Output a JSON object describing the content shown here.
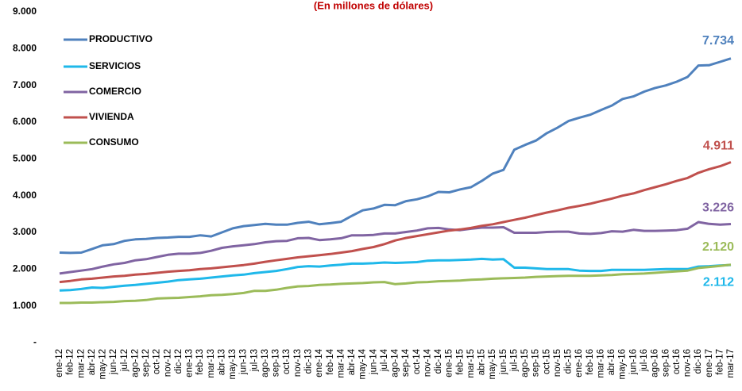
{
  "chart_data": {
    "type": "line",
    "subtitle": "(En millones de dólares)",
    "categories": [
      "ene-12",
      "feb-12",
      "mar-12",
      "abr-12",
      "may-12",
      "jun-12",
      "jul-12",
      "ago-12",
      "sep-12",
      "oct-12",
      "nov-12",
      "dic-12",
      "ene-13",
      "feb-13",
      "mar-13",
      "abr-13",
      "may-13",
      "jun-13",
      "jul-13",
      "ago-13",
      "sep-13",
      "oct-13",
      "nov-13",
      "dic-13",
      "ene-14",
      "feb-14",
      "mar-14",
      "abr-14",
      "may-14",
      "jun-14",
      "jul-14",
      "ago-14",
      "sep-14",
      "oct-14",
      "nov-14",
      "dic-14",
      "ene-15",
      "feb-15",
      "mar-15",
      "abr-15",
      "may-15",
      "jun-15",
      "jul-15",
      "ago-15",
      "sep-15",
      "oct-15",
      "nov-15",
      "dic-15",
      "ene-16",
      "feb-16",
      "mar-16",
      "abr-16",
      "may-16",
      "jun-16",
      "jul-16",
      "ago-16",
      "sep-16",
      "oct-16",
      "nov-16",
      "dic-16",
      "ene-17",
      "feb-17",
      "mar-17"
    ],
    "series": [
      {
        "name": "PRODUCTIVO",
        "color": "#4f81bd",
        "values": [
          2450,
          2440,
          2450,
          2550,
          2650,
          2680,
          2770,
          2810,
          2820,
          2850,
          2860,
          2880,
          2880,
          2920,
          2890,
          3000,
          3110,
          3170,
          3200,
          3230,
          3210,
          3210,
          3260,
          3290,
          3220,
          3250,
          3290,
          3450,
          3600,
          3650,
          3750,
          3740,
          3850,
          3900,
          3980,
          4100,
          4090,
          4170,
          4230,
          4400,
          4600,
          4700,
          5250,
          5380,
          5500,
          5700,
          5850,
          6030,
          6120,
          6200,
          6330,
          6450,
          6630,
          6700,
          6830,
          6930,
          7000,
          7100,
          7230,
          7540,
          7550,
          7640,
          7734
        ],
        "value_labels": [
          null,
          null,
          null,
          null,
          null,
          null,
          null,
          null,
          null,
          null,
          null,
          null,
          null,
          null,
          null,
          null,
          null,
          null,
          null,
          null,
          null,
          null,
          null,
          null,
          null,
          null,
          null,
          null,
          null,
          null,
          null,
          null,
          null,
          null,
          null,
          null,
          null,
          null,
          null,
          null,
          null,
          null,
          null,
          null,
          null,
          null,
          null,
          null,
          null,
          null,
          null,
          null,
          null,
          null,
          null,
          null,
          null,
          null,
          null,
          null,
          null,
          null,
          "7.734"
        ]
      },
      {
        "name": "SERVICIOS",
        "color": "#1fb8ea",
        "values": [
          1420,
          1430,
          1460,
          1500,
          1490,
          1520,
          1550,
          1570,
          1600,
          1630,
          1660,
          1700,
          1720,
          1740,
          1770,
          1800,
          1830,
          1850,
          1890,
          1920,
          1950,
          2000,
          2060,
          2080,
          2070,
          2100,
          2120,
          2150,
          2150,
          2160,
          2180,
          2170,
          2180,
          2190,
          2230,
          2240,
          2240,
          2250,
          2260,
          2280,
          2260,
          2270,
          2040,
          2040,
          2020,
          2000,
          2000,
          2000,
          1960,
          1950,
          1950,
          1980,
          1980,
          1980,
          1980,
          1990,
          2000,
          2000,
          2000,
          2070,
          2080,
          2100,
          2112
        ],
        "value_labels": [
          null,
          null,
          null,
          null,
          null,
          null,
          null,
          null,
          null,
          null,
          null,
          null,
          null,
          null,
          null,
          null,
          null,
          null,
          null,
          null,
          null,
          null,
          null,
          null,
          null,
          null,
          null,
          null,
          null,
          null,
          null,
          null,
          null,
          null,
          null,
          null,
          null,
          null,
          null,
          null,
          null,
          null,
          null,
          null,
          null,
          null,
          null,
          null,
          null,
          null,
          null,
          null,
          null,
          null,
          null,
          null,
          null,
          null,
          null,
          null,
          null,
          null,
          "2.112"
        ]
      },
      {
        "name": "COMERCIO",
        "color": "#8064a2",
        "values": [
          1880,
          1920,
          1960,
          2000,
          2070,
          2130,
          2170,
          2240,
          2270,
          2330,
          2390,
          2420,
          2420,
          2440,
          2500,
          2580,
          2620,
          2650,
          2680,
          2730,
          2760,
          2770,
          2840,
          2850,
          2790,
          2810,
          2840,
          2920,
          2920,
          2930,
          2970,
          2970,
          3010,
          3050,
          3110,
          3120,
          3080,
          3060,
          3100,
          3130,
          3130,
          3140,
          2990,
          2990,
          2990,
          3010,
          3020,
          3020,
          2970,
          2960,
          2980,
          3030,
          3020,
          3070,
          3040,
          3040,
          3050,
          3060,
          3100,
          3280,
          3230,
          3210,
          3226
        ],
        "value_labels": [
          null,
          null,
          null,
          null,
          null,
          null,
          null,
          null,
          null,
          null,
          null,
          null,
          null,
          null,
          null,
          null,
          null,
          null,
          null,
          null,
          null,
          null,
          null,
          null,
          null,
          null,
          null,
          null,
          null,
          null,
          null,
          null,
          null,
          null,
          null,
          null,
          null,
          null,
          null,
          null,
          null,
          null,
          null,
          null,
          null,
          null,
          null,
          null,
          null,
          null,
          null,
          null,
          null,
          null,
          null,
          null,
          null,
          null,
          null,
          null,
          null,
          null,
          "3.226"
        ]
      },
      {
        "name": "VIVIENDA",
        "color": "#c0504d",
        "values": [
          1650,
          1680,
          1720,
          1740,
          1770,
          1800,
          1820,
          1850,
          1870,
          1900,
          1930,
          1950,
          1970,
          2000,
          2020,
          2050,
          2080,
          2110,
          2150,
          2200,
          2240,
          2280,
          2320,
          2350,
          2380,
          2410,
          2450,
          2490,
          2550,
          2600,
          2680,
          2780,
          2850,
          2900,
          2950,
          3000,
          3050,
          3080,
          3120,
          3180,
          3220,
          3280,
          3340,
          3400,
          3470,
          3540,
          3600,
          3670,
          3720,
          3780,
          3850,
          3920,
          4000,
          4060,
          4150,
          4230,
          4310,
          4400,
          4480,
          4620,
          4720,
          4800,
          4911
        ],
        "value_labels": [
          null,
          null,
          null,
          null,
          null,
          null,
          null,
          null,
          null,
          null,
          null,
          null,
          null,
          null,
          null,
          null,
          null,
          null,
          null,
          null,
          null,
          null,
          null,
          null,
          null,
          null,
          null,
          null,
          null,
          null,
          null,
          null,
          null,
          null,
          null,
          null,
          null,
          null,
          null,
          null,
          null,
          null,
          null,
          null,
          null,
          null,
          null,
          null,
          null,
          null,
          null,
          null,
          null,
          null,
          null,
          null,
          null,
          null,
          null,
          null,
          null,
          null,
          "4.911"
        ]
      },
      {
        "name": "CONSUMO",
        "color": "#9bbb59",
        "values": [
          1080,
          1080,
          1090,
          1090,
          1100,
          1110,
          1130,
          1140,
          1160,
          1200,
          1210,
          1220,
          1240,
          1260,
          1290,
          1300,
          1320,
          1350,
          1410,
          1410,
          1440,
          1490,
          1530,
          1540,
          1570,
          1580,
          1600,
          1610,
          1620,
          1640,
          1650,
          1590,
          1610,
          1640,
          1650,
          1670,
          1680,
          1690,
          1710,
          1720,
          1740,
          1750,
          1760,
          1770,
          1790,
          1800,
          1810,
          1820,
          1820,
          1820,
          1830,
          1840,
          1860,
          1870,
          1880,
          1900,
          1920,
          1940,
          1960,
          2030,
          2060,
          2090,
          2120
        ],
        "value_labels": [
          null,
          null,
          null,
          null,
          null,
          null,
          null,
          null,
          null,
          null,
          null,
          null,
          null,
          null,
          null,
          null,
          null,
          null,
          null,
          null,
          null,
          null,
          null,
          null,
          null,
          null,
          null,
          null,
          null,
          null,
          null,
          null,
          null,
          null,
          null,
          null,
          null,
          null,
          null,
          null,
          null,
          null,
          null,
          null,
          null,
          null,
          null,
          null,
          null,
          null,
          null,
          null,
          null,
          null,
          null,
          null,
          null,
          null,
          null,
          null,
          null,
          null,
          "2.120"
        ]
      }
    ],
    "ylim": [
      0,
      9000
    ],
    "yticks": [
      {
        "value": 0,
        "label": "-"
      },
      {
        "value": 1000,
        "label": "1.000"
      },
      {
        "value": 2000,
        "label": "2.000"
      },
      {
        "value": 3000,
        "label": "3.000"
      },
      {
        "value": 4000,
        "label": "4.000"
      },
      {
        "value": 5000,
        "label": "5.000"
      },
      {
        "value": 6000,
        "label": "6.000"
      },
      {
        "value": 7000,
        "label": "7.000"
      },
      {
        "value": 8000,
        "label": "8.000"
      },
      {
        "value": 9000,
        "label": "9.000"
      }
    ],
    "grid": false,
    "legend": "top-left"
  }
}
